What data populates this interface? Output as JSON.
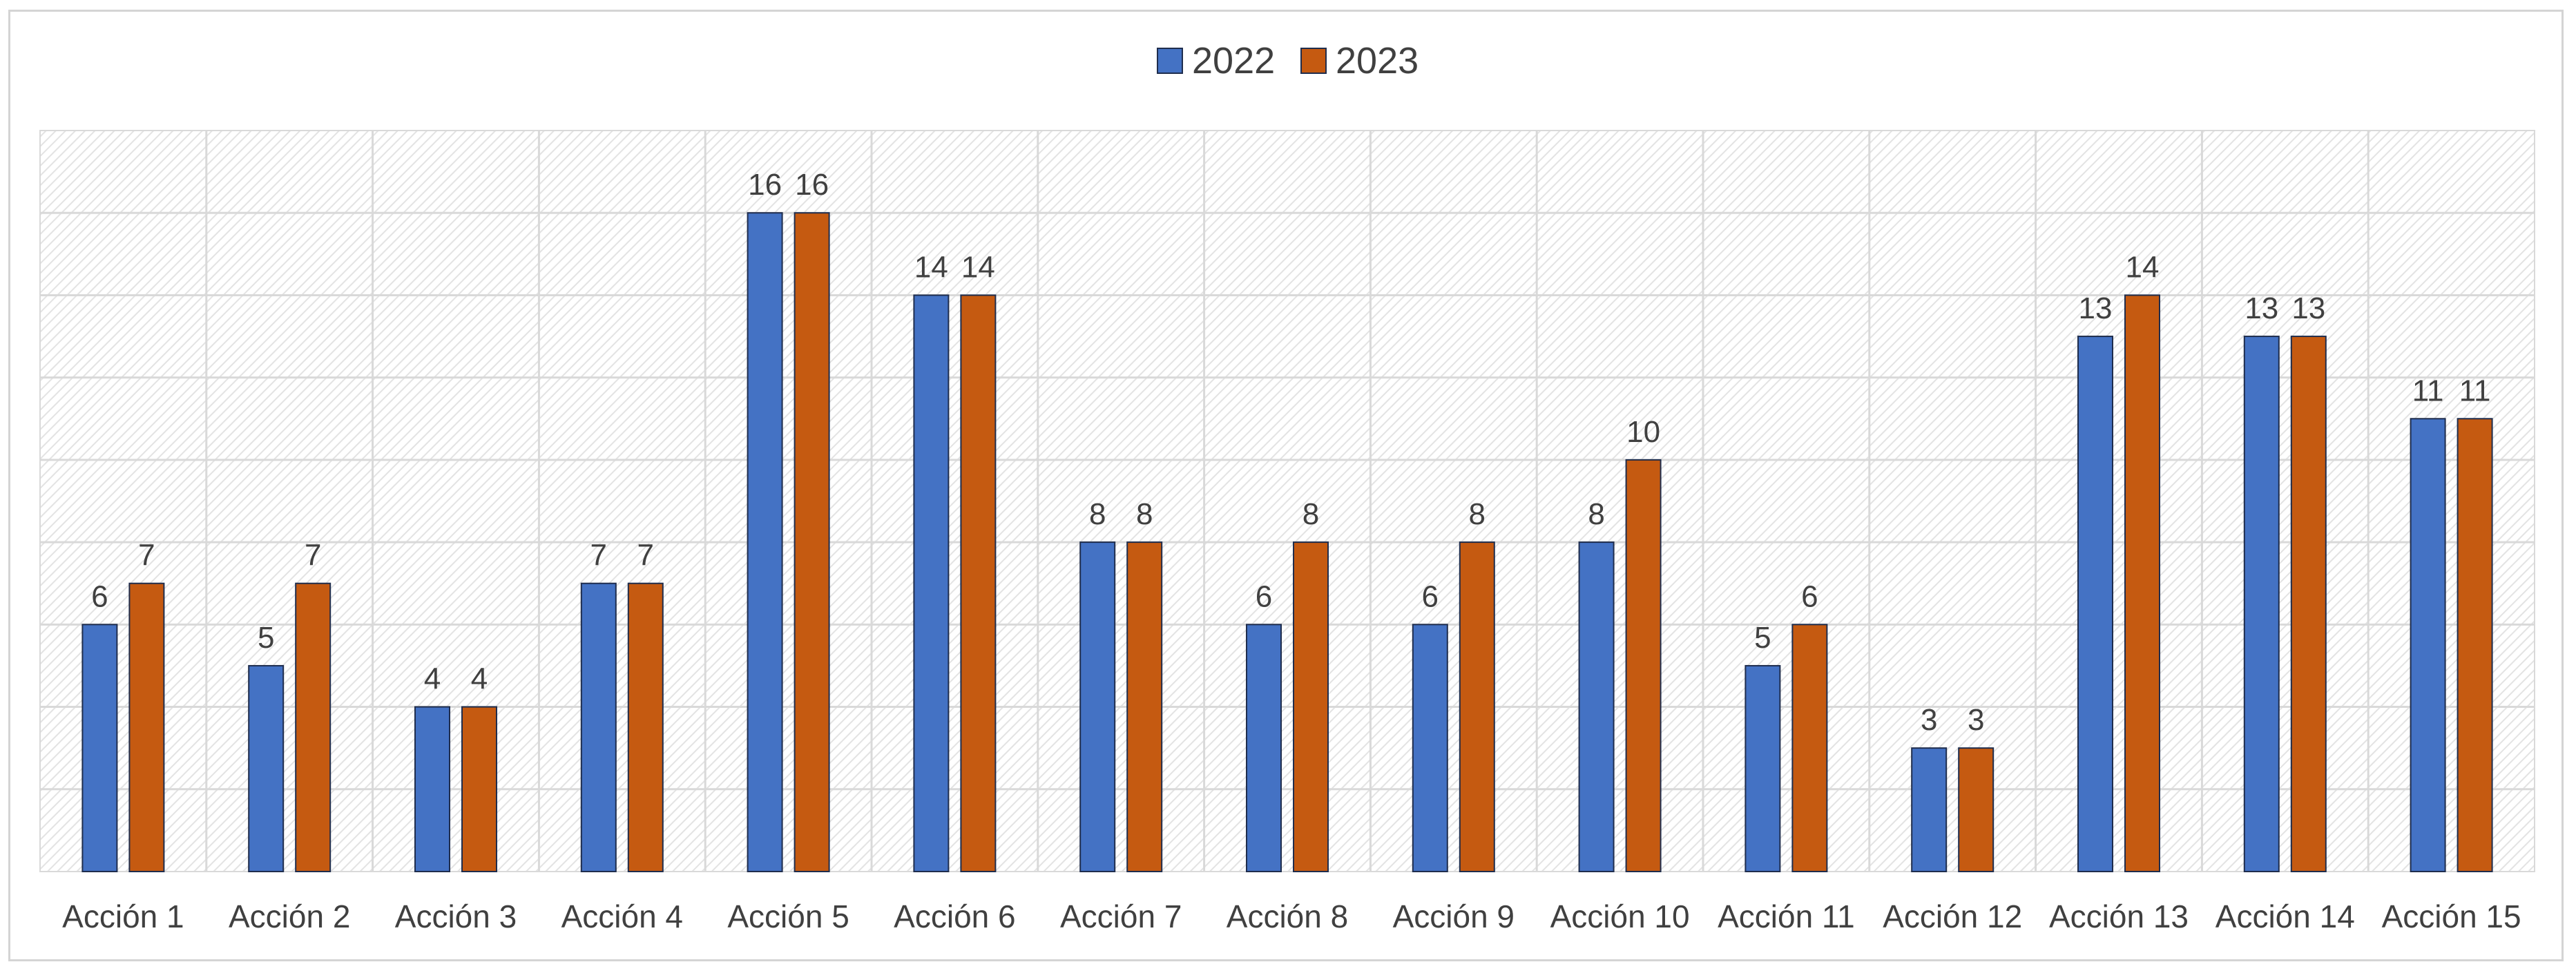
{
  "chart_data": {
    "type": "bar",
    "title": "",
    "xlabel": "",
    "ylabel": "",
    "ylim": [
      0,
      18
    ],
    "ytick_step": 2,
    "grid": true,
    "y_tick_labels_shown": false,
    "legend_position": "top-center",
    "categories": [
      "Acción 1",
      "Acción 2",
      "Acción 3",
      "Acción 4",
      "Acción 5",
      "Acción 6",
      "Acción 7",
      "Acción 8",
      "Acción 9",
      "Acción 10",
      "Acción 11",
      "Acción 12",
      "Acción 13",
      "Acción 14",
      "Acción 15"
    ],
    "series": [
      {
        "name": "2022",
        "color": "#4472c4",
        "values": [
          6,
          5,
          4,
          7,
          16,
          14,
          8,
          6,
          6,
          8,
          5,
          3,
          13,
          13,
          11
        ],
        "label_values": [
          "6",
          "5",
          "4",
          "7",
          "16",
          "14",
          "8",
          "6",
          "6",
          "8",
          "5",
          "3",
          "13",
          "13",
          "11"
        ]
      },
      {
        "name": "2023",
        "color": "#c55a11",
        "values": [
          7,
          7,
          4,
          7,
          16,
          14,
          8,
          8,
          8,
          10,
          6,
          3,
          14,
          13,
          11
        ],
        "label_values": [
          "7",
          "7",
          "4",
          "7",
          "16",
          "14",
          "8",
          "8",
          "8",
          "10",
          "6",
          "3",
          "14",
          "13",
          "11"
        ]
      }
    ]
  },
  "colors": {
    "plot_hatch": "#e3e3e3",
    "gridline": "#d9d9d9",
    "bar_outline": "#1f2d4d",
    "frame": "#d4d4d4",
    "text": "#404040"
  }
}
